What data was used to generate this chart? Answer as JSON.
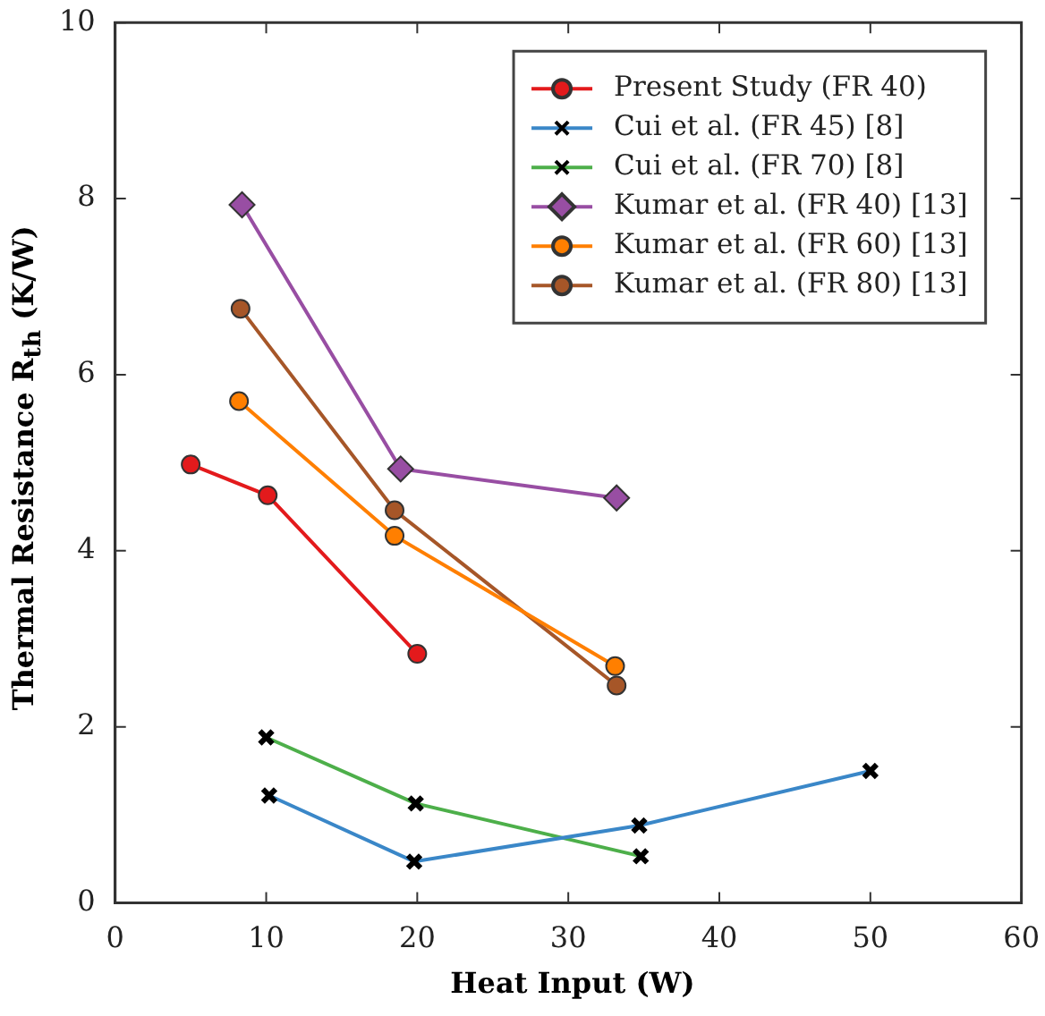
{
  "chart_data": {
    "type": "line",
    "xlabel": "Heat Input (W)",
    "ylabel": "Thermal Resistance R$_{th}$ (K/W)",
    "xlim": [
      0,
      60
    ],
    "xticks": [
      0,
      10,
      20,
      30,
      40,
      50,
      60
    ],
    "ylim": [
      0,
      10
    ],
    "yticks": [
      0,
      2,
      4,
      6,
      8,
      10
    ],
    "grid": false,
    "legend": "top right",
    "series": [
      {
        "name": "Present Study (FR 40)",
        "color": "#e31a1c",
        "marker": "circle",
        "x": [
          5,
          10.1,
          20
        ],
        "values": [
          4.98,
          4.63,
          2.83
        ]
      },
      {
        "name": "Cui et al. (FR 45) [8]",
        "color": "#3a87c8",
        "marker": "cross",
        "x": [
          10.2,
          19.8,
          34.7,
          50
        ],
        "values": [
          1.22,
          0.47,
          0.88,
          1.5
        ]
      },
      {
        "name": "Cui et al. (FR 70) [8]",
        "color": "#4daf4a",
        "marker": "cross",
        "x": [
          10,
          19.9,
          34.8
        ],
        "values": [
          1.88,
          1.13,
          0.53
        ]
      },
      {
        "name": "Kumar et al. (FR 40) [13]",
        "color": "#984ea3",
        "marker": "diamond",
        "x": [
          8.4,
          18.9,
          33.2
        ],
        "values": [
          7.93,
          4.93,
          4.6
        ]
      },
      {
        "name": "Kumar et al. (FR 60) [13]",
        "color": "#ff7f00",
        "marker": "circle",
        "x": [
          8.2,
          18.5,
          33.1
        ],
        "values": [
          5.7,
          4.17,
          2.69
        ]
      },
      {
        "name": "Kumar et al. (FR 80) [13]",
        "color": "#a65628",
        "marker": "circle",
        "x": [
          8.3,
          18.5,
          33.2
        ],
        "values": [
          6.75,
          4.46,
          2.47
        ]
      }
    ]
  }
}
